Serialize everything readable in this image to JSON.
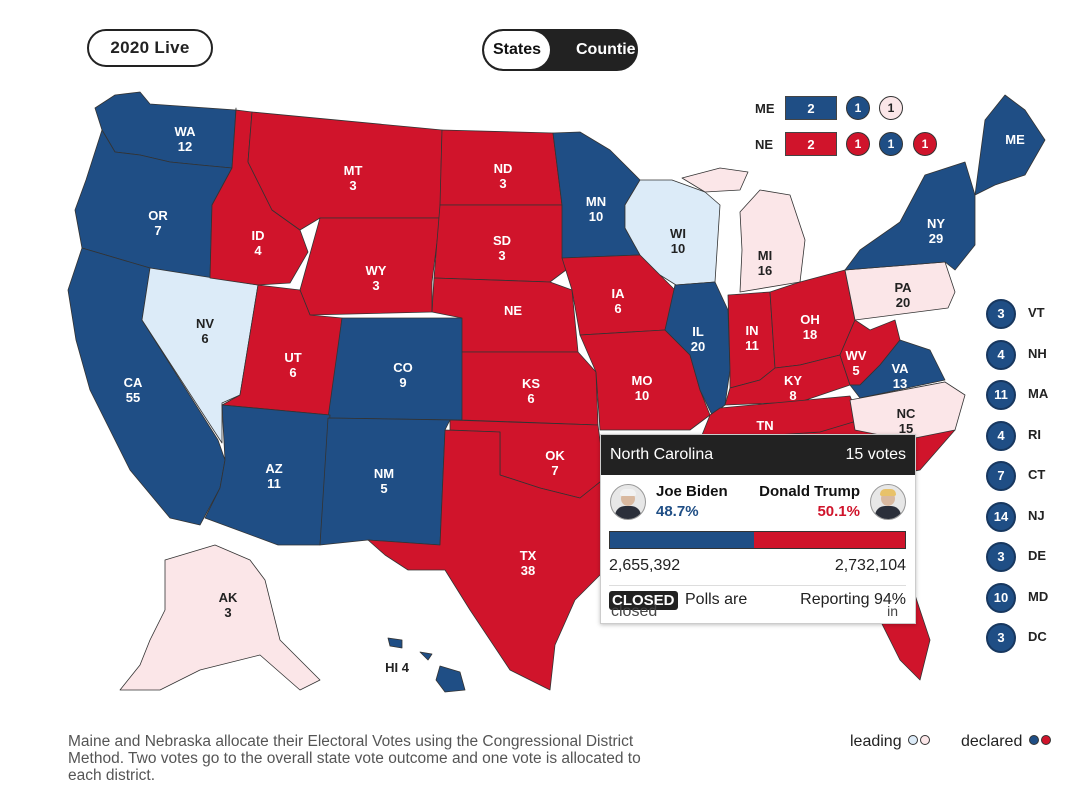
{
  "header": {
    "year_button": "2020 Live",
    "toggle_states": "States",
    "toggle_counties": "Counties"
  },
  "colors": {
    "dem": "#1f4e85",
    "rep": "#d0142b",
    "dem_lead": "#dcebf8",
    "rep_lead": "#fbe6e8"
  },
  "states": [
    {
      "abbr": "WA",
      "votes": "12",
      "status": "dem"
    },
    {
      "abbr": "OR",
      "votes": "7",
      "status": "dem"
    },
    {
      "abbr": "CA",
      "votes": "55",
      "status": "dem"
    },
    {
      "abbr": "NV",
      "votes": "6",
      "status": "dem_lead"
    },
    {
      "abbr": "ID",
      "votes": "4",
      "status": "rep"
    },
    {
      "abbr": "MT",
      "votes": "3",
      "status": "rep"
    },
    {
      "abbr": "WY",
      "votes": "3",
      "status": "rep"
    },
    {
      "abbr": "UT",
      "votes": "6",
      "status": "rep"
    },
    {
      "abbr": "CO",
      "votes": "9",
      "status": "dem"
    },
    {
      "abbr": "AZ",
      "votes": "11",
      "status": "dem"
    },
    {
      "abbr": "NM",
      "votes": "5",
      "status": "dem"
    },
    {
      "abbr": "ND",
      "votes": "3",
      "status": "rep"
    },
    {
      "abbr": "SD",
      "votes": "3",
      "status": "rep"
    },
    {
      "abbr": "NE",
      "votes": "",
      "status": "rep"
    },
    {
      "abbr": "KS",
      "votes": "6",
      "status": "rep"
    },
    {
      "abbr": "OK",
      "votes": "7",
      "status": "rep"
    },
    {
      "abbr": "TX",
      "votes": "38",
      "status": "rep"
    },
    {
      "abbr": "MN",
      "votes": "10",
      "status": "dem"
    },
    {
      "abbr": "IA",
      "votes": "6",
      "status": "rep"
    },
    {
      "abbr": "MO",
      "votes": "10",
      "status": "rep"
    },
    {
      "abbr": "WI",
      "votes": "10",
      "status": "dem_lead"
    },
    {
      "abbr": "IL",
      "votes": "20",
      "status": "dem"
    },
    {
      "abbr": "MI",
      "votes": "16",
      "status": "rep_lead"
    },
    {
      "abbr": "IN",
      "votes": "11",
      "status": "rep"
    },
    {
      "abbr": "OH",
      "votes": "18",
      "status": "rep"
    },
    {
      "abbr": "KY",
      "votes": "8",
      "status": "rep"
    },
    {
      "abbr": "TN",
      "votes": "",
      "status": "rep"
    },
    {
      "abbr": "WV",
      "votes": "5",
      "status": "rep"
    },
    {
      "abbr": "VA",
      "votes": "13",
      "status": "dem"
    },
    {
      "abbr": "NC",
      "votes": "15",
      "status": "rep_lead"
    },
    {
      "abbr": "PA",
      "votes": "20",
      "status": "rep_lead"
    },
    {
      "abbr": "NY",
      "votes": "29",
      "status": "dem"
    },
    {
      "abbr": "ME",
      "votes": "",
      "status": "split"
    },
    {
      "abbr": "AK",
      "votes": "3",
      "status": "rep_lead"
    },
    {
      "abbr": "HI",
      "votes": "4",
      "status": "dem"
    }
  ],
  "maine": {
    "label": "ME",
    "at_large": "2",
    "districts": [
      "1",
      "1"
    ]
  },
  "nebraska": {
    "label": "NE",
    "at_large": "2",
    "districts": [
      "1",
      "1",
      "1"
    ]
  },
  "small_states": [
    {
      "abbr": "VT",
      "votes": "3"
    },
    {
      "abbr": "NH",
      "votes": "4"
    },
    {
      "abbr": "MA",
      "votes": "11"
    },
    {
      "abbr": "RI",
      "votes": "4"
    },
    {
      "abbr": "CT",
      "votes": "7"
    },
    {
      "abbr": "NJ",
      "votes": "14"
    },
    {
      "abbr": "DE",
      "votes": "3"
    },
    {
      "abbr": "MD",
      "votes": "10"
    },
    {
      "abbr": "DC",
      "votes": "3"
    }
  ],
  "tooltip": {
    "state": "North Carolina",
    "votes": "15 votes",
    "dem_name": "Joe Biden",
    "dem_pct": "48.7%",
    "dem_share": 0.487,
    "dem_count": "2,655,392",
    "rep_name": "Donald Trump",
    "rep_pct": "50.1%",
    "rep_count": "2,732,104",
    "badge": "CLOSED",
    "polls": "Polls are closed",
    "polls_line1": "Polls are",
    "polls_line2": "closed",
    "reporting_line1": "Reporting 94%",
    "reporting_line2": "in"
  },
  "footnote": "Maine and Nebraska allocate their Electoral Votes using the Congressional District Method. Two votes go to the overall state vote outcome and one vote is allocated to each district.",
  "legend": {
    "leading": "leading",
    "declared": "declared"
  }
}
